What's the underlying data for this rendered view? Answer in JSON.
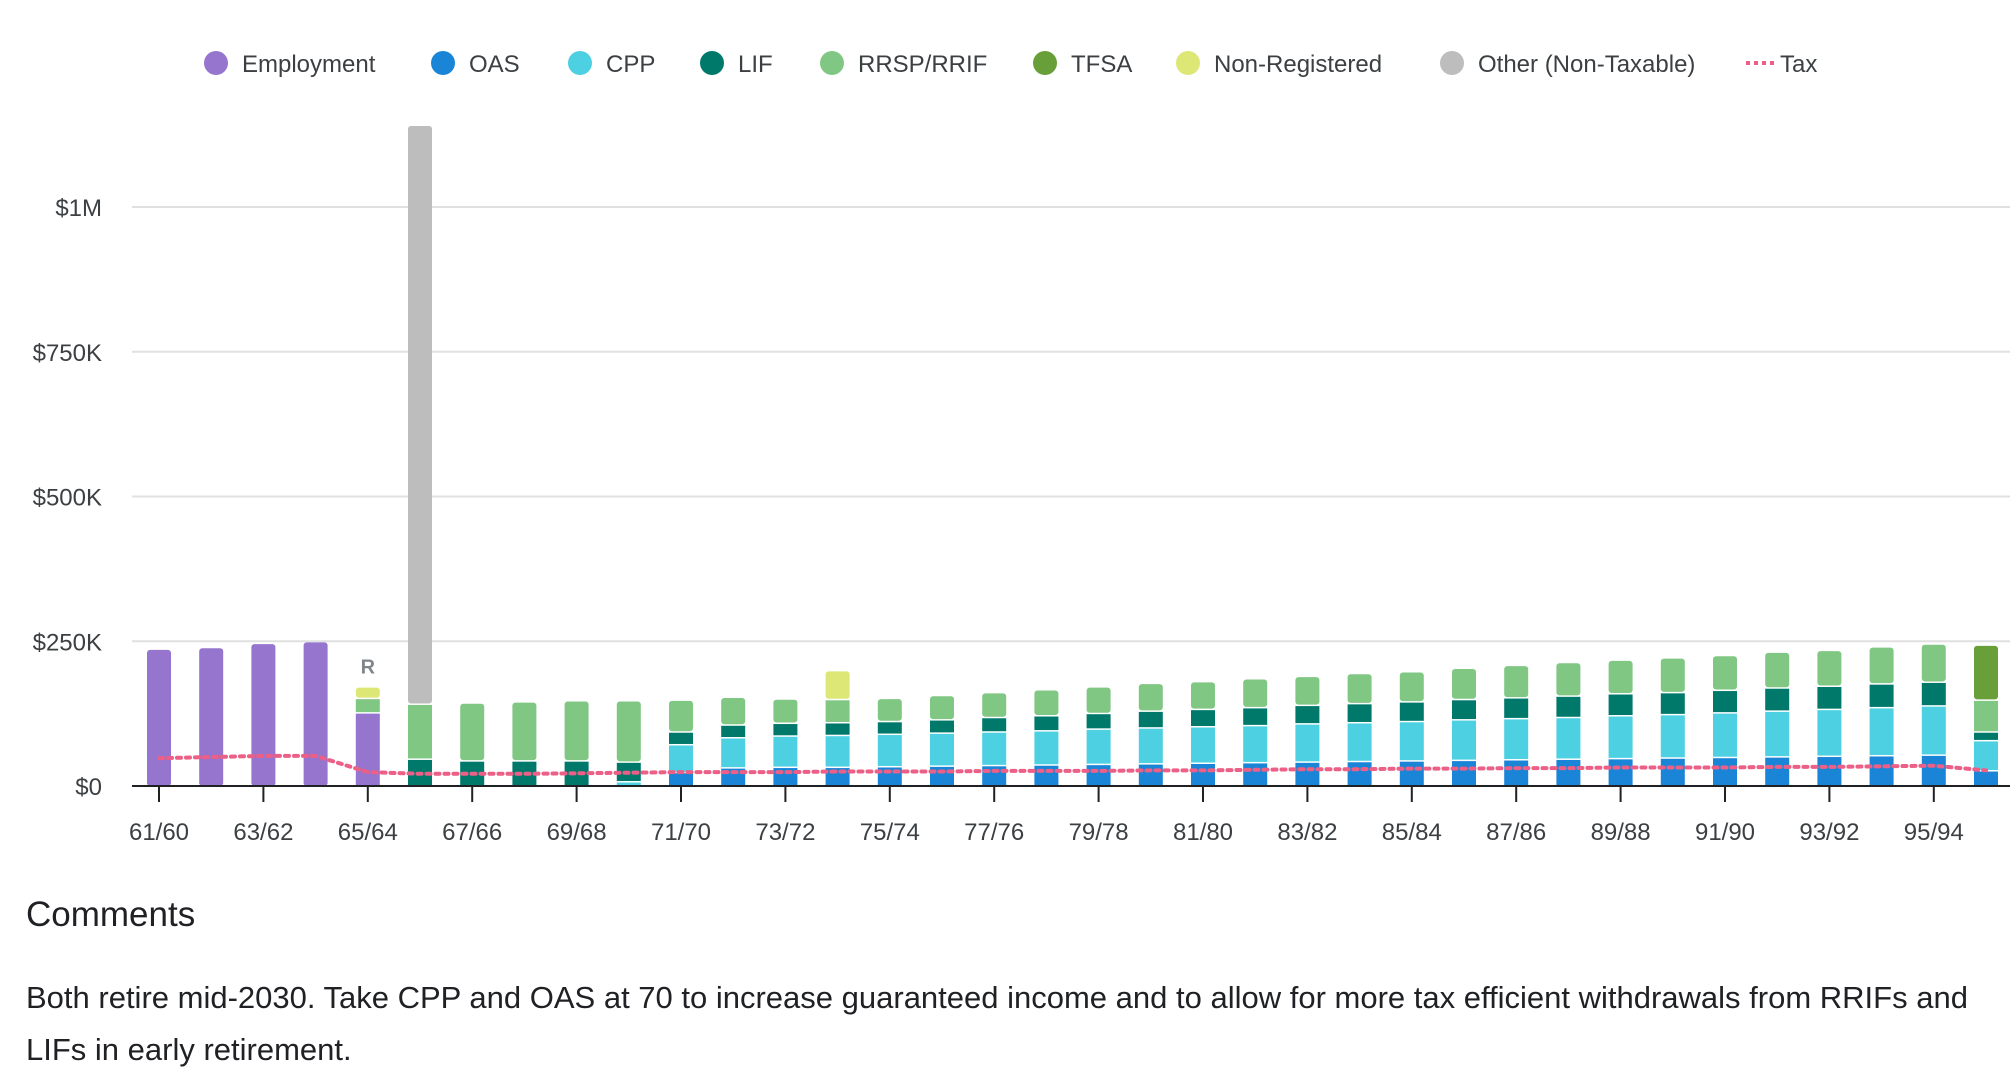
{
  "chart_data": {
    "type": "bar",
    "stacked": true,
    "title": "",
    "xlabel": "",
    "ylabel": "",
    "ylim": [
      0,
      1150000
    ],
    "grid": true,
    "legend_position": "top",
    "y_ticks": [
      {
        "value": 0,
        "label": "$0"
      },
      {
        "value": 250000,
        "label": "$250K"
      },
      {
        "value": 500000,
        "label": "$500K"
      },
      {
        "value": 750000,
        "label": "$750K"
      },
      {
        "value": 1000000,
        "label": "$1M"
      }
    ],
    "categories": [
      "61/60",
      "62/61",
      "63/62",
      "64/63",
      "65/64",
      "66/65",
      "67/66",
      "68/67",
      "69/68",
      "70/69",
      "71/70",
      "72/71",
      "73/72",
      "74/73",
      "75/74",
      "76/75",
      "77/76",
      "78/77",
      "79/78",
      "80/79",
      "81/80",
      "82/81",
      "83/82",
      "84/83",
      "85/84",
      "86/85",
      "87/86",
      "88/87",
      "89/88",
      "90/89",
      "91/90",
      "92/91",
      "93/92",
      "94/93",
      "95/94",
      "96/95"
    ],
    "x_tick_labels": [
      "61/60",
      "63/62",
      "65/64",
      "67/66",
      "69/68",
      "71/70",
      "73/72",
      "75/74",
      "77/76",
      "79/78",
      "81/80",
      "83/82",
      "85/84",
      "87/86",
      "89/88",
      "91/90",
      "93/92",
      "95/94"
    ],
    "series": [
      {
        "name": "Employment",
        "color": "#9575cd",
        "values": [
          235000,
          238000,
          245000,
          248000,
          125000,
          0,
          0,
          0,
          0,
          0,
          0,
          0,
          0,
          0,
          0,
          0,
          0,
          0,
          0,
          0,
          0,
          0,
          0,
          0,
          0,
          0,
          0,
          0,
          0,
          0,
          0,
          0,
          0,
          0,
          0,
          0
        ]
      },
      {
        "name": "OAS",
        "color": "#1a85d6",
        "values": [
          0,
          0,
          0,
          0,
          0,
          0,
          0,
          0,
          0,
          0,
          22000,
          30000,
          31000,
          31000,
          32000,
          33000,
          34000,
          35000,
          36000,
          37000,
          38000,
          39000,
          40000,
          41000,
          42000,
          43000,
          44000,
          45000,
          46000,
          47000,
          48000,
          49000,
          50000,
          51000,
          52000,
          25000
        ]
      },
      {
        "name": "CPP",
        "color": "#4dd0e1",
        "values": [
          0,
          0,
          0,
          0,
          0,
          0,
          0,
          0,
          0,
          6000,
          48000,
          52000,
          54000,
          55000,
          56000,
          57000,
          58000,
          59000,
          61000,
          62000,
          63000,
          64000,
          66000,
          67000,
          68000,
          70000,
          71000,
          72000,
          74000,
          75000,
          77000,
          79000,
          81000,
          83000,
          85000,
          52000
        ]
      },
      {
        "name": "LIF",
        "color": "#00796b",
        "values": [
          0,
          0,
          0,
          0,
          0,
          45000,
          42000,
          42000,
          42000,
          34000,
          22000,
          22000,
          22000,
          22000,
          22000,
          23000,
          25000,
          26000,
          27000,
          29000,
          30000,
          31000,
          32000,
          33000,
          34000,
          35000,
          36000,
          37000,
          38000,
          38000,
          39000,
          40000,
          40000,
          41000,
          41000,
          15000
        ]
      },
      {
        "name": "RRSP/RRIF",
        "color": "#81c784",
        "values": [
          0,
          0,
          0,
          0,
          25000,
          95000,
          100000,
          102000,
          104000,
          106000,
          55000,
          48000,
          42000,
          40000,
          40000,
          42000,
          43000,
          45000,
          46000,
          48000,
          48000,
          50000,
          50000,
          52000,
          52000,
          54000,
          56000,
          58000,
          58000,
          60000,
          60000,
          62000,
          62000,
          64000,
          66000,
          55000
        ]
      },
      {
        "name": "TFSA",
        "color": "#689f38",
        "values": [
          0,
          0,
          0,
          0,
          0,
          0,
          0,
          0,
          0,
          0,
          0,
          0,
          0,
          0,
          0,
          0,
          0,
          0,
          0,
          0,
          0,
          0,
          0,
          0,
          0,
          0,
          0,
          0,
          0,
          0,
          0,
          0,
          0,
          0,
          0,
          95000
        ]
      },
      {
        "name": "Non-Registered",
        "color": "#dce775",
        "values": [
          0,
          0,
          0,
          0,
          20000,
          0,
          0,
          0,
          0,
          0,
          0,
          0,
          0,
          50000,
          0,
          0,
          0,
          0,
          0,
          0,
          0,
          0,
          0,
          0,
          0,
          0,
          0,
          0,
          0,
          0,
          0,
          0,
          0,
          0,
          0,
          0
        ]
      },
      {
        "name": "Other (Non-Taxable)",
        "color": "#bdbdbd",
        "values": [
          0,
          0,
          0,
          0,
          0,
          1000000,
          0,
          0,
          0,
          0,
          0,
          0,
          0,
          0,
          0,
          0,
          0,
          0,
          0,
          0,
          0,
          0,
          0,
          0,
          0,
          0,
          0,
          0,
          0,
          0,
          0,
          0,
          0,
          0,
          0,
          0
        ]
      },
      {
        "name": "Tax",
        "color": "#ec5f86",
        "kind": "line",
        "values": [
          48000,
          50000,
          52000,
          52000,
          24000,
          21000,
          21000,
          21000,
          22000,
          23000,
          24000,
          24000,
          24000,
          25000,
          25000,
          25000,
          26000,
          26000,
          26000,
          27000,
          27000,
          28000,
          29000,
          29000,
          30000,
          30000,
          31000,
          31000,
          32000,
          32000,
          32000,
          33000,
          33000,
          34000,
          35000,
          27000
        ]
      }
    ],
    "annotations": [
      {
        "category": "65/64",
        "text": "R"
      }
    ]
  },
  "comments": {
    "title": "Comments",
    "body": "Both retire mid-2030. Take CPP and OAS at 70 to increase guaranteed income and to allow for more tax efficient withdrawals from RRIFs and LIFs in early retirement."
  }
}
